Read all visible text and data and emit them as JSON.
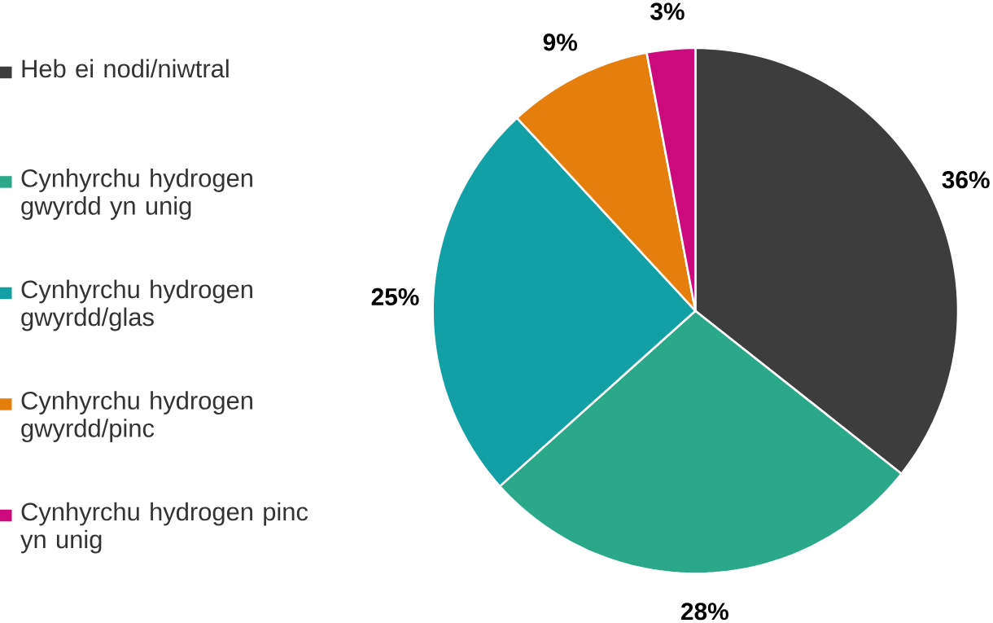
{
  "chart_data": {
    "type": "pie",
    "categories": [
      "Heb ei nodi/niwtral",
      "Cynhyrchu hydrogen gwyrdd yn unig",
      "Cynhyrchu hydrogen gwyrdd/glas",
      "Cynhyrchu hydrogen gwyrdd/pinc",
      "Cynhyrchu hydrogen pinc yn unig"
    ],
    "values": [
      36,
      28,
      25,
      9,
      3
    ],
    "colors": [
      "#3d3d3d",
      "#2aa889",
      "#12a0a6",
      "#e67e0e",
      "#cc0a7e"
    ],
    "value_labels": [
      "36%",
      "28%",
      "25%",
      "9%",
      "3%"
    ],
    "legend": "left"
  }
}
